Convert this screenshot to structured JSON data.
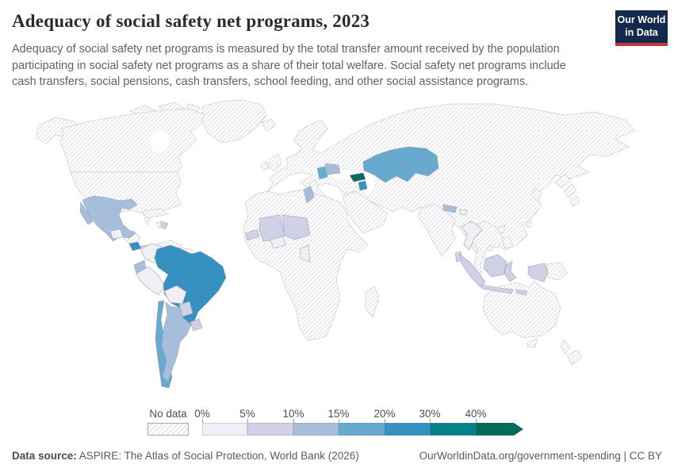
{
  "header": {
    "title": "Adequacy of social safety net programs, 2023",
    "subtitle": "Adequacy of social safety net programs is measured by the total transfer amount received by the population participating in social safety net programs as a share of their total welfare. Social safety net programs include cash transfers, social pensions, cash transfers, school feeding, and other social assistance programs.",
    "logo": {
      "line1": "Our World",
      "line2": "in Data",
      "bg_color": "#132a4d",
      "accent_color": "#c5353a"
    }
  },
  "legend": {
    "no_data_label": "No data",
    "tick_labels": [
      "0%",
      "5%",
      "10%",
      "15%",
      "20%",
      "30%",
      "40%"
    ],
    "bins": [
      {
        "range": "0-5%",
        "color": "#f1eef6"
      },
      {
        "range": "5-10%",
        "color": "#d0d1e6"
      },
      {
        "range": "10-15%",
        "color": "#a6bddb"
      },
      {
        "range": "15-20%",
        "color": "#67a9cf"
      },
      {
        "range": "20-30%",
        "color": "#3690c0"
      },
      {
        "range": "30-40%",
        "color": "#02818a"
      },
      {
        "range": "40%+",
        "color": "#016c59"
      }
    ]
  },
  "footer": {
    "source_label": "Data source:",
    "source_text": "ASPIRE: The Atlas of Social Protection, World Bank (2026)",
    "url_text": "OurWorldinData.org/government-spending | CC BY"
  },
  "chart_data": {
    "type": "choropleth",
    "title": "Adequacy of social safety net programs",
    "year": 2023,
    "unit": "% of total welfare",
    "no_data_style": "hatched",
    "bin_thresholds_percent": [
      0,
      5,
      10,
      15,
      20,
      30,
      40
    ],
    "countries": [
      {
        "name": "Mexico",
        "value_bin": "10-15%",
        "color": "#a6bddb"
      },
      {
        "name": "Guatemala",
        "value_bin": "0-5%",
        "color": "#f1eef6"
      },
      {
        "name": "Costa Rica",
        "value_bin": "20-30%",
        "color": "#3690c0"
      },
      {
        "name": "Panama",
        "value_bin": "5-10%",
        "color": "#d0d1e6"
      },
      {
        "name": "Dominican Republic",
        "value_bin": "5-10%",
        "color": "#d0d1e6"
      },
      {
        "name": "Colombia",
        "value_bin": "0-5%",
        "color": "#f1eef6"
      },
      {
        "name": "Ecuador",
        "value_bin": "10-15%",
        "color": "#a6bddb"
      },
      {
        "name": "Peru",
        "value_bin": "0-5%",
        "color": "#f1eef6"
      },
      {
        "name": "Brazil",
        "value_bin": "20-30%",
        "color": "#3690c0"
      },
      {
        "name": "Bolivia",
        "value_bin": "0-5%",
        "color": "#f1eef6"
      },
      {
        "name": "Paraguay",
        "value_bin": "5-10%",
        "color": "#d0d1e6"
      },
      {
        "name": "Uruguay",
        "value_bin": "5-10%",
        "color": "#d0d1e6"
      },
      {
        "name": "Argentina",
        "value_bin": "10-15%",
        "color": "#a6bddb"
      },
      {
        "name": "Chile",
        "value_bin": "15-20%",
        "color": "#67a9cf"
      },
      {
        "name": "Senegal",
        "value_bin": "5-10%",
        "color": "#d0d1e6"
      },
      {
        "name": "Mali",
        "value_bin": "5-10%",
        "color": "#d0d1e6"
      },
      {
        "name": "Niger",
        "value_bin": "5-10%",
        "color": "#d0d1e6"
      },
      {
        "name": "Burkina Faso",
        "value_bin": "0-5%",
        "color": "#f1eef6"
      },
      {
        "name": "Cameroon",
        "value_bin": "0-5%",
        "color": "#f1eef6"
      },
      {
        "name": "Tunisia",
        "value_bin": "10-15%",
        "color": "#a6bddb"
      },
      {
        "name": "Serbia",
        "value_bin": "15-20%",
        "color": "#67a9cf"
      },
      {
        "name": "Romania",
        "value_bin": "10-15%",
        "color": "#a6bddb"
      },
      {
        "name": "Georgia",
        "value_bin": "40%+",
        "color": "#016c59"
      },
      {
        "name": "Armenia",
        "value_bin": "20-30%",
        "color": "#3690c0"
      },
      {
        "name": "Kazakhstan",
        "value_bin": "15-20%",
        "color": "#67a9cf"
      },
      {
        "name": "Nepal",
        "value_bin": "10-15%",
        "color": "#a6bddb"
      },
      {
        "name": "Bhutan",
        "value_bin": "0-5%",
        "color": "#f1eef6"
      },
      {
        "name": "Sri Lanka",
        "value_bin": "5-10%",
        "color": "#d0d1e6"
      },
      {
        "name": "Thailand",
        "value_bin": "0-5%",
        "color": "#f1eef6"
      },
      {
        "name": "Laos",
        "value_bin": "0-5%",
        "color": "#f1eef6"
      },
      {
        "name": "Indonesia",
        "value_bin": "5-10%",
        "color": "#d0d1e6"
      }
    ]
  }
}
